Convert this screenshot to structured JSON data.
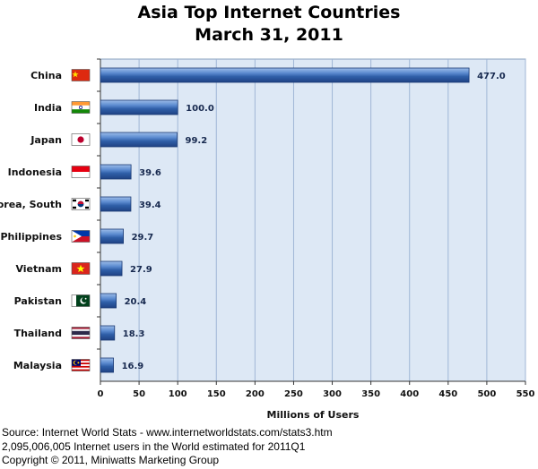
{
  "chart_data": {
    "type": "bar",
    "orientation": "horizontal",
    "title": "Asia Top Internet Countries",
    "subtitle": "March 31, 2011",
    "categories": [
      "China",
      "India",
      "Japan",
      "Indonesia",
      "Korea, South",
      "Philippines",
      "Vietnam",
      "Pakistan",
      "Thailand",
      "Malaysia"
    ],
    "values": [
      477.0,
      100.0,
      99.2,
      39.6,
      39.4,
      29.7,
      27.9,
      20.4,
      18.3,
      16.9
    ],
    "value_labels": [
      "477.0",
      "100.0",
      "99.2",
      "39.6",
      "39.4",
      "29.7",
      "27.9",
      "20.4",
      "18.3",
      "16.9"
    ],
    "xlabel": "Millions of Users",
    "ylabel": "",
    "xlim": [
      0,
      550
    ],
    "xticks": [
      "0",
      "50",
      "100",
      "150",
      "200",
      "250",
      "300",
      "350",
      "400",
      "450",
      "500",
      "550"
    ],
    "grid": true,
    "legend": "none",
    "colors": {
      "bar": "#2f5fa8",
      "bar_highlight": "#7fa6e0",
      "plot_background": "#dde8f5",
      "grid": "#9fb6d6"
    },
    "flags": [
      "china-flag-icon",
      "india-flag-icon",
      "japan-flag-icon",
      "indonesia-flag-icon",
      "south-korea-flag-icon",
      "philippines-flag-icon",
      "vietnam-flag-icon",
      "pakistan-flag-icon",
      "thailand-flag-icon",
      "malaysia-flag-icon"
    ]
  },
  "footer": {
    "source": "Source: Internet World Stats - www.internetworldstats.com/stats3.htm",
    "world_users": "2,095,006,005 Internet users in the World estimated for 2011Q1",
    "copyright": "Copyright © 2011, Miniwatts Marketing Group"
  }
}
